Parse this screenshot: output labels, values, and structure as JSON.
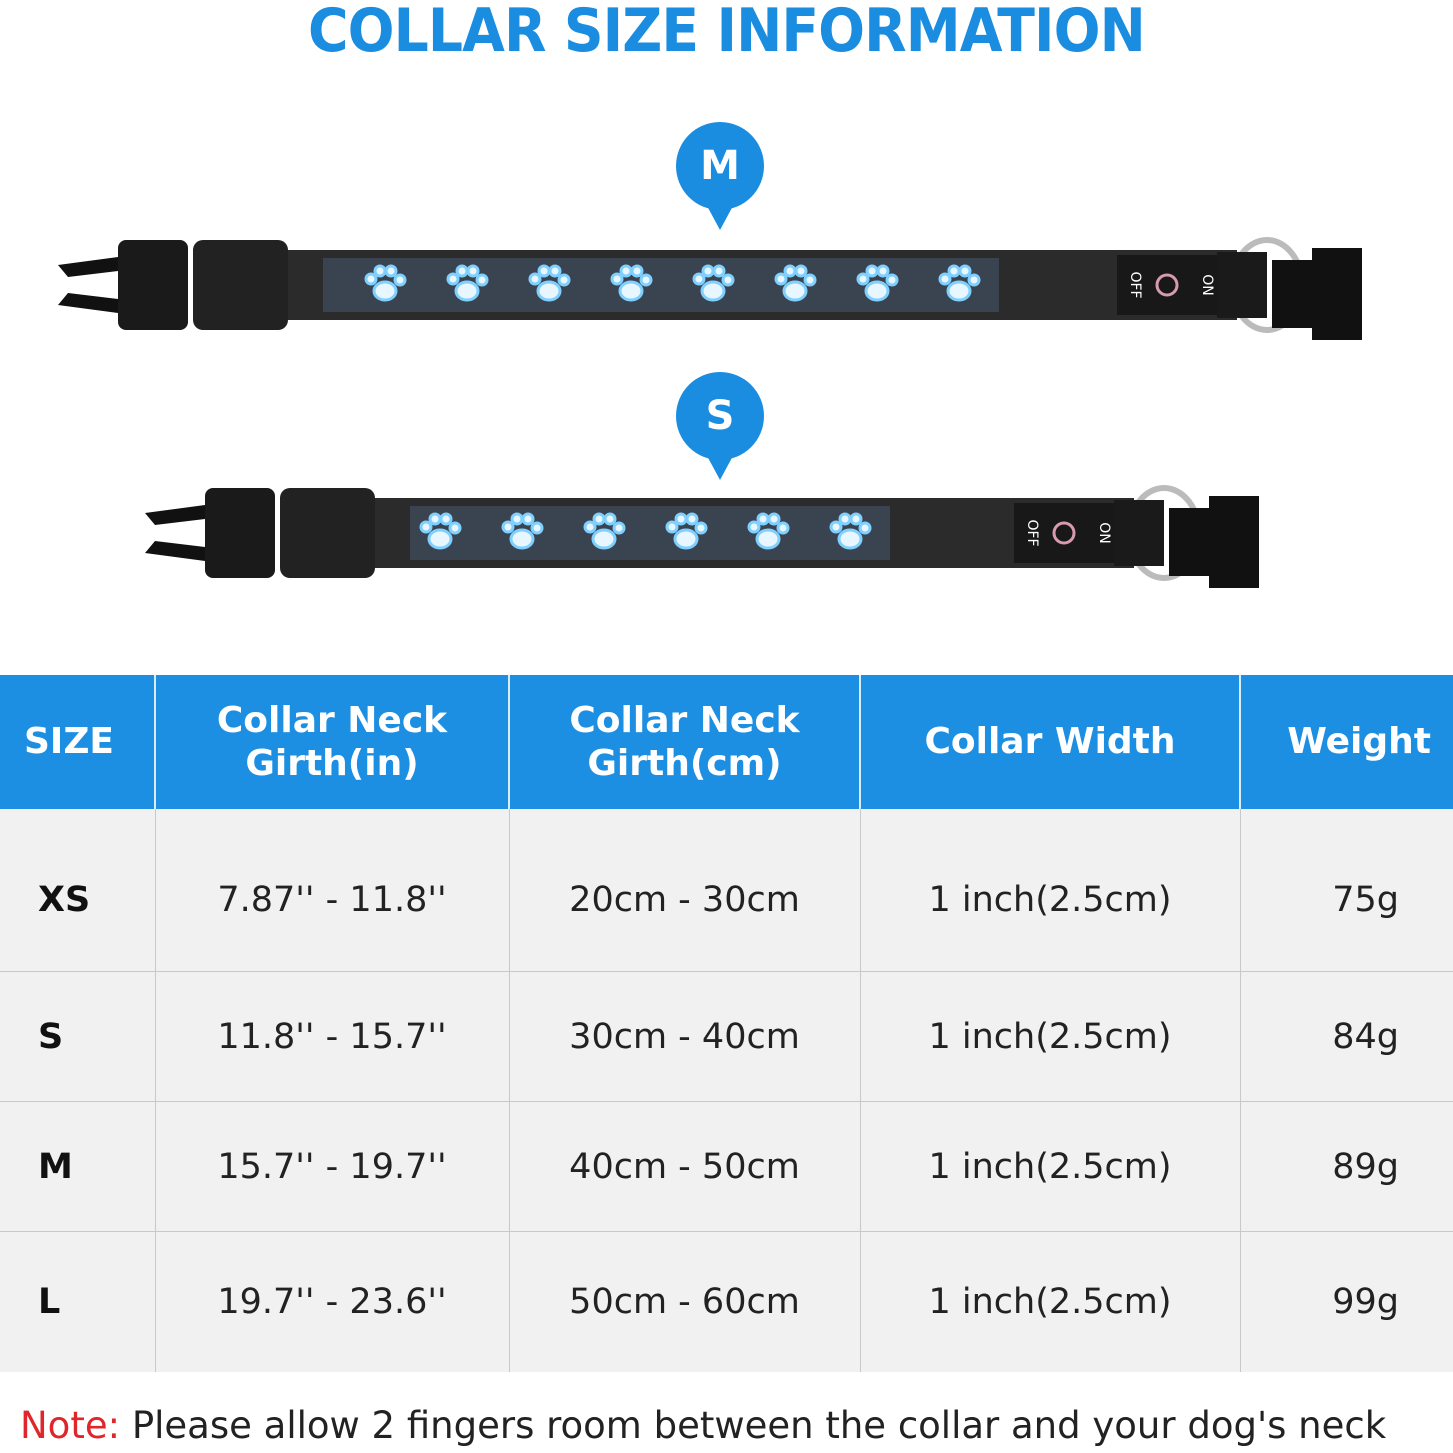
{
  "title": "COLLAR SIZE INFORMATION",
  "collars": [
    {
      "size_label": "M",
      "paw_count": 8,
      "switch_off": "OFF",
      "switch_on": "ON"
    },
    {
      "size_label": "S",
      "paw_count": 6,
      "switch_off": "OFF",
      "switch_on": "ON"
    }
  ],
  "colors": {
    "accent": "#1a8de0",
    "note_label": "#e0262b",
    "paw_glow": "#7fd0ff"
  },
  "table": {
    "headers": [
      "SIZE",
      "Collar Neck Girth(in)",
      "Collar Neck Girth(cm)",
      "Collar Width",
      "Weight"
    ],
    "rows": [
      [
        "XS",
        "7.87'' - 11.8''",
        "20cm - 30cm",
        "1 inch(2.5cm)",
        "75g"
      ],
      [
        "S",
        "11.8'' - 15.7''",
        "30cm - 40cm",
        "1 inch(2.5cm)",
        "84g"
      ],
      [
        "M",
        "15.7'' - 19.7''",
        "40cm - 50cm",
        "1 inch(2.5cm)",
        "89g"
      ],
      [
        "L",
        "19.7'' - 23.6''",
        "50cm - 60cm",
        "1 inch(2.5cm)",
        "99g"
      ]
    ]
  },
  "note": {
    "label": "Note:",
    "text": " Please allow 2 fingers room between the collar and your dog's neck"
  }
}
